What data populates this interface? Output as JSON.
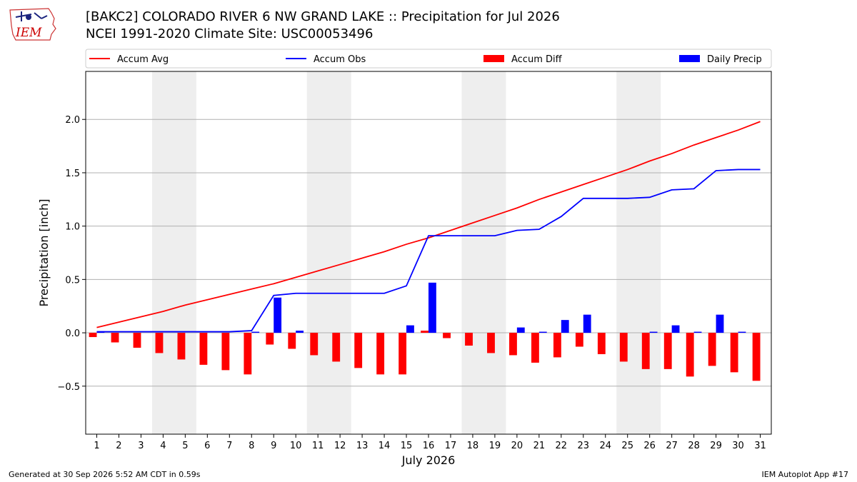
{
  "header": {
    "title_line1": "[BAKC2] COLORADO RIVER 6 NW GRAND LAKE :: Precipitation for Jul 2026",
    "title_line2": "NCEI 1991-2020 Climate Site: USC00053496",
    "logo_text": "IEM"
  },
  "footer": {
    "generated": "Generated at 30 Sep 2026 5:52 AM CDT in 0.59s",
    "app": "IEM Autoplot App #17"
  },
  "chart_data": {
    "type": "bar",
    "xlabel": "July 2026",
    "ylabel": "Precipitation [inch]",
    "xlim": [
      0.5,
      31.5
    ],
    "ylim": [
      -0.95,
      2.45
    ],
    "yticks": [
      -0.5,
      0.0,
      0.5,
      1.0,
      1.5,
      2.0
    ],
    "ytick_labels": [
      "−0.5",
      "0.0",
      "0.5",
      "1.0",
      "1.5",
      "2.0"
    ],
    "x": [
      1,
      2,
      3,
      4,
      5,
      6,
      7,
      8,
      9,
      10,
      11,
      12,
      13,
      14,
      15,
      16,
      17,
      18,
      19,
      20,
      21,
      22,
      23,
      24,
      25,
      26,
      27,
      28,
      29,
      30,
      31
    ],
    "x_labels": [
      "1",
      "2",
      "3",
      "4",
      "5",
      "6",
      "7",
      "8",
      "9",
      "10",
      "11",
      "12",
      "13",
      "14",
      "15",
      "16",
      "17",
      "18",
      "19",
      "20",
      "21",
      "22",
      "23",
      "24",
      "25",
      "26",
      "27",
      "28",
      "29",
      "30",
      "31"
    ],
    "weekend_shading": [
      [
        3.5,
        5.5
      ],
      [
        10.5,
        12.5
      ],
      [
        17.5,
        19.5
      ],
      [
        24.5,
        26.5
      ]
    ],
    "grid": "horizontal",
    "legend_position": "top",
    "series": [
      {
        "name": "Accum Avg",
        "type": "line",
        "color": "#ff0000",
        "values": [
          0.05,
          0.1,
          0.15,
          0.2,
          0.26,
          0.31,
          0.36,
          0.41,
          0.46,
          0.52,
          0.58,
          0.64,
          0.7,
          0.76,
          0.83,
          0.89,
          0.96,
          1.03,
          1.1,
          1.17,
          1.25,
          1.32,
          1.39,
          1.46,
          1.53,
          1.61,
          1.68,
          1.76,
          1.83,
          1.9,
          1.98
        ]
      },
      {
        "name": "Accum Obs",
        "type": "line",
        "color": "#0000ff",
        "values": [
          0.01,
          0.01,
          0.01,
          0.01,
          0.01,
          0.01,
          0.01,
          0.02,
          0.35,
          0.37,
          0.37,
          0.37,
          0.37,
          0.37,
          0.44,
          0.91,
          0.91,
          0.91,
          0.91,
          0.96,
          0.97,
          1.09,
          1.26,
          1.26,
          1.26,
          1.27,
          1.34,
          1.35,
          1.52,
          1.53,
          1.53
        ]
      },
      {
        "name": "Accum Diff",
        "type": "bar",
        "color": "#ff0000",
        "values": [
          -0.04,
          -0.09,
          -0.14,
          -0.19,
          -0.25,
          -0.3,
          -0.35,
          -0.39,
          -0.11,
          -0.15,
          -0.21,
          -0.27,
          -0.33,
          -0.39,
          -0.39,
          0.02,
          -0.05,
          -0.12,
          -0.19,
          -0.21,
          -0.28,
          -0.23,
          -0.13,
          -0.2,
          -0.27,
          -0.34,
          -0.34,
          -0.41,
          -0.31,
          -0.37,
          -0.45
        ]
      },
      {
        "name": "Daily Precip",
        "type": "bar",
        "color": "#0000ff",
        "values": [
          0.01,
          0,
          0,
          0,
          0,
          0,
          0,
          0.01,
          0.33,
          0.02,
          0,
          0,
          0,
          0,
          0.07,
          0.47,
          0,
          0,
          0,
          0.05,
          0.01,
          0.12,
          0.17,
          0,
          0,
          0.01,
          0.07,
          0.01,
          0.17,
          0.01,
          0
        ]
      }
    ]
  }
}
